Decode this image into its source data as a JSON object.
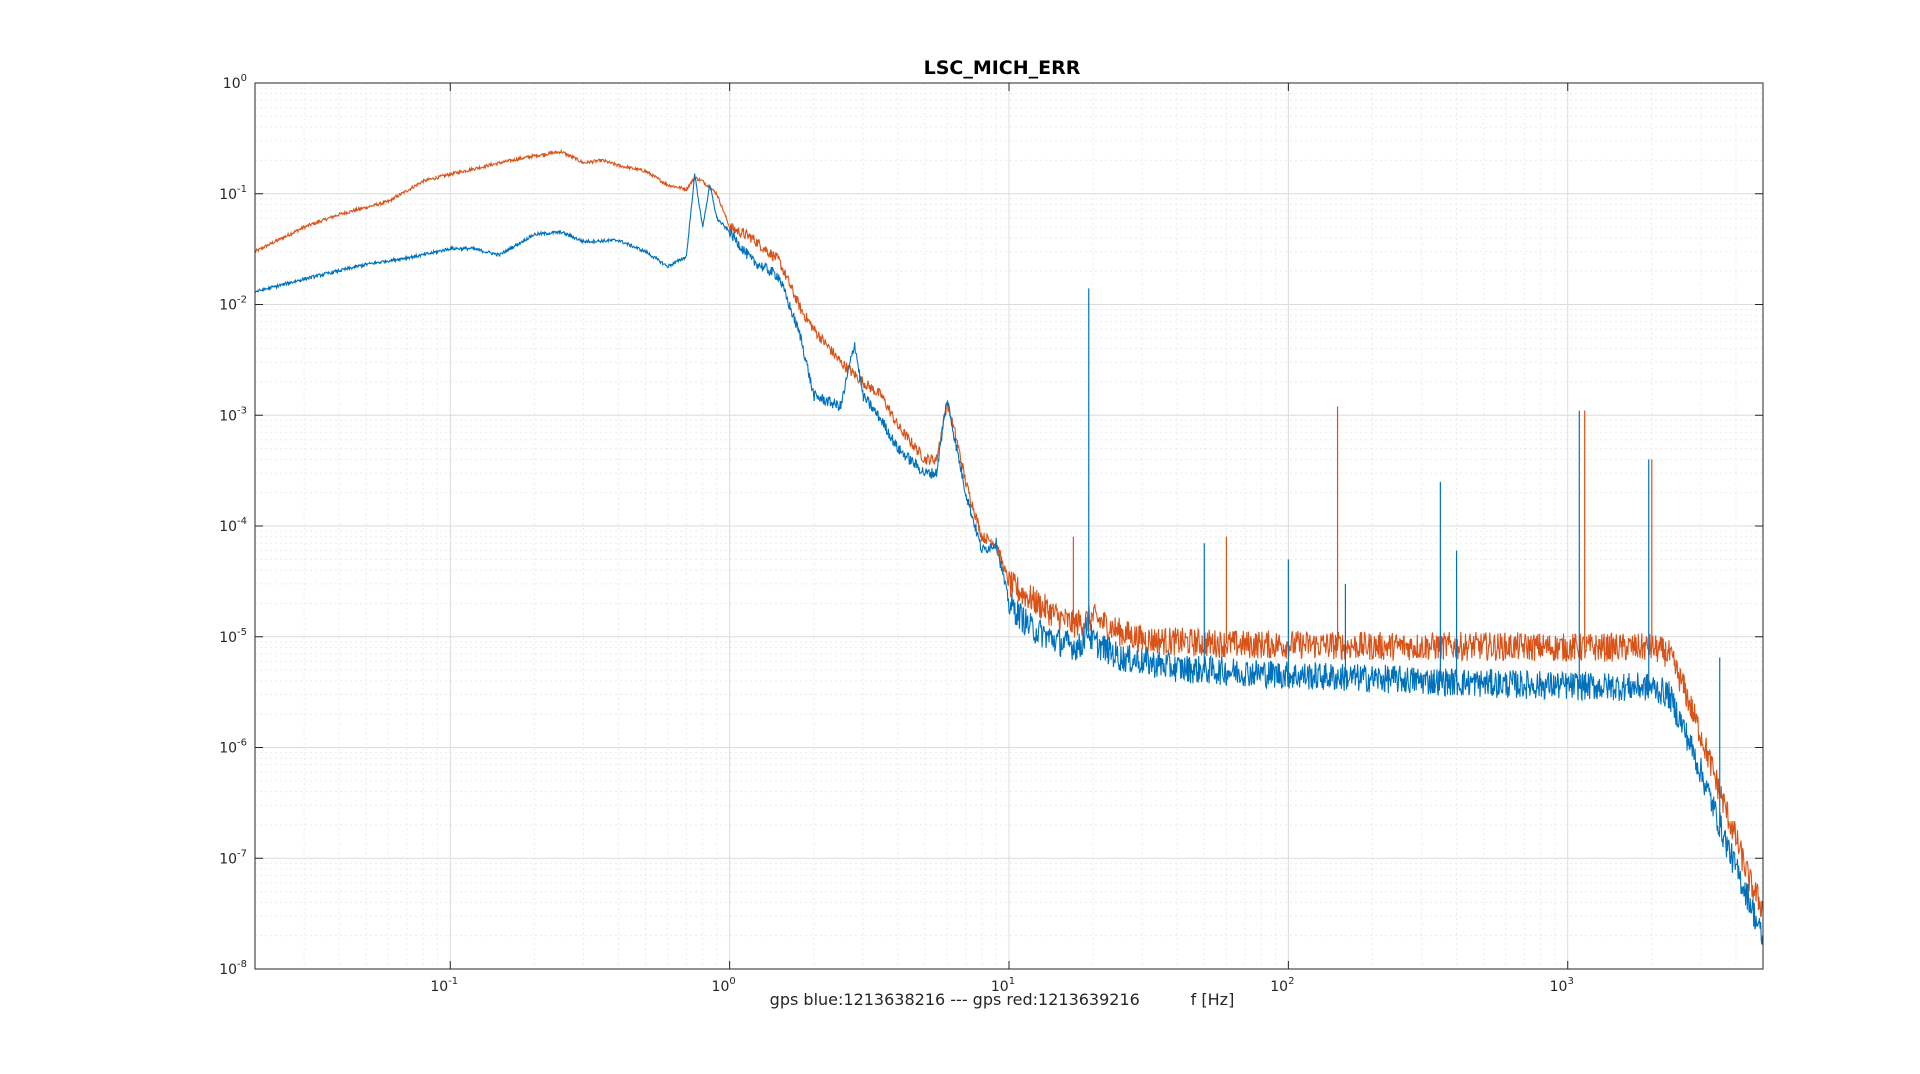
{
  "chart_data": {
    "type": "line",
    "title": "LSC_MICH_ERR",
    "xlabel": "gps blue:1213638216 --- gps red:1213639216          f [Hz]",
    "ylabel": "",
    "x_scale": "log",
    "y_scale": "log",
    "xlim": [
      0.02,
      5000
    ],
    "ylim": [
      1e-08,
      1
    ],
    "grid": true,
    "minor_grid": true,
    "legend": "none",
    "x_ticks": [
      {
        "value": 0.1,
        "base": "10",
        "exp": "-1"
      },
      {
        "value": 1,
        "base": "10",
        "exp": "0"
      },
      {
        "value": 10,
        "base": "10",
        "exp": "1"
      },
      {
        "value": 100,
        "base": "10",
        "exp": "2"
      },
      {
        "value": 1000,
        "base": "10",
        "exp": "3"
      }
    ],
    "y_ticks": [
      {
        "value": 1e-08,
        "base": "10",
        "exp": "-8"
      },
      {
        "value": 1e-07,
        "base": "10",
        "exp": "-7"
      },
      {
        "value": 1e-06,
        "base": "10",
        "exp": "-6"
      },
      {
        "value": 1e-05,
        "base": "10",
        "exp": "-5"
      },
      {
        "value": 0.0001,
        "base": "10",
        "exp": "-4"
      },
      {
        "value": 0.001,
        "base": "10",
        "exp": "-3"
      },
      {
        "value": 0.01,
        "base": "10",
        "exp": "-2"
      },
      {
        "value": 0.1,
        "base": "10",
        "exp": "-1"
      },
      {
        "value": 1,
        "base": "10",
        "exp": "0"
      }
    ],
    "series": [
      {
        "color": "#D95319",
        "points": [
          [
            0.02,
            0.03
          ],
          [
            0.03,
            0.05
          ],
          [
            0.04,
            0.065
          ],
          [
            0.06,
            0.085
          ],
          [
            0.08,
            0.13
          ],
          [
            0.1,
            0.15
          ],
          [
            0.15,
            0.19
          ],
          [
            0.2,
            0.22
          ],
          [
            0.25,
            0.24
          ],
          [
            0.3,
            0.19
          ],
          [
            0.35,
            0.2
          ],
          [
            0.4,
            0.18
          ],
          [
            0.5,
            0.16
          ],
          [
            0.6,
            0.12
          ],
          [
            0.7,
            0.11
          ],
          [
            0.75,
            0.14
          ],
          [
            0.8,
            0.13
          ],
          [
            0.9,
            0.1
          ],
          [
            1.0,
            0.05
          ],
          [
            1.2,
            0.04
          ],
          [
            1.5,
            0.025
          ],
          [
            1.8,
            0.009
          ],
          [
            2.0,
            0.006
          ],
          [
            2.5,
            0.003
          ],
          [
            3.0,
            0.002
          ],
          [
            3.5,
            0.0015
          ],
          [
            4.0,
            0.0008
          ],
          [
            5.0,
            0.0004
          ],
          [
            5.5,
            0.0004
          ],
          [
            6.0,
            0.0013
          ],
          [
            6.5,
            0.0006
          ],
          [
            7.0,
            0.00025
          ],
          [
            8.0,
            8e-05
          ],
          [
            9.0,
            7e-05
          ],
          [
            10,
            3e-05
          ],
          [
            12,
            2.2e-05
          ],
          [
            15,
            1.5e-05
          ],
          [
            17,
            1.3e-05
          ],
          [
            19,
            1.4e-05
          ],
          [
            20,
            1.5e-05
          ],
          [
            25,
            1.1e-05
          ],
          [
            30,
            9.5e-06
          ],
          [
            40,
            9e-06
          ],
          [
            50,
            8.8e-06
          ],
          [
            70,
            8.5e-06
          ],
          [
            100,
            8.5e-06
          ],
          [
            200,
            8.2e-06
          ],
          [
            500,
            8.2e-06
          ],
          [
            1000,
            8e-06
          ],
          [
            2000,
            8e-06
          ],
          [
            2300,
            7e-06
          ],
          [
            2600,
            3.5e-06
          ],
          [
            3000,
            1.3e-06
          ],
          [
            3500,
            4e-07
          ],
          [
            4000,
            1.5e-07
          ],
          [
            4500,
            6e-08
          ],
          [
            5000,
            3.5e-08
          ]
        ]
      },
      {
        "color": "#0072BD",
        "points": [
          [
            0.02,
            0.013
          ],
          [
            0.03,
            0.017
          ],
          [
            0.05,
            0.023
          ],
          [
            0.08,
            0.028
          ],
          [
            0.1,
            0.032
          ],
          [
            0.12,
            0.032
          ],
          [
            0.15,
            0.028
          ],
          [
            0.2,
            0.043
          ],
          [
            0.25,
            0.045
          ],
          [
            0.3,
            0.037
          ],
          [
            0.4,
            0.038
          ],
          [
            0.5,
            0.03
          ],
          [
            0.6,
            0.022
          ],
          [
            0.7,
            0.027
          ],
          [
            0.75,
            0.15
          ],
          [
            0.8,
            0.05
          ],
          [
            0.85,
            0.12
          ],
          [
            0.9,
            0.06
          ],
          [
            1.0,
            0.045
          ],
          [
            1.2,
            0.025
          ],
          [
            1.5,
            0.018
          ],
          [
            1.8,
            0.005
          ],
          [
            2.0,
            0.0015
          ],
          [
            2.5,
            0.0012
          ],
          [
            2.8,
            0.0045
          ],
          [
            3.0,
            0.0015
          ],
          [
            3.5,
            0.0009
          ],
          [
            4.0,
            0.0005
          ],
          [
            5.0,
            0.0003
          ],
          [
            5.5,
            0.0003
          ],
          [
            6.0,
            0.0014
          ],
          [
            6.5,
            0.0005
          ],
          [
            7.0,
            0.0002
          ],
          [
            8.0,
            6e-05
          ],
          [
            9.0,
            7e-05
          ],
          [
            10,
            2e-05
          ],
          [
            12,
            1.2e-05
          ],
          [
            15,
            9e-06
          ],
          [
            18,
            8e-06
          ],
          [
            19,
            1.2e-05
          ],
          [
            20,
            9e-06
          ],
          [
            25,
            6.5e-06
          ],
          [
            30,
            6e-06
          ],
          [
            40,
            5.2e-06
          ],
          [
            50,
            5e-06
          ],
          [
            70,
            4.8e-06
          ],
          [
            100,
            4.5e-06
          ],
          [
            200,
            4.2e-06
          ],
          [
            500,
            3.8e-06
          ],
          [
            1000,
            3.6e-06
          ],
          [
            2000,
            3.5e-06
          ],
          [
            2300,
            3e-06
          ],
          [
            2600,
            1.5e-06
          ],
          [
            3000,
            6e-07
          ],
          [
            3500,
            2e-07
          ],
          [
            4000,
            8e-08
          ],
          [
            4500,
            4e-08
          ],
          [
            5000,
            1.8e-08
          ]
        ]
      }
    ],
    "spikes": [
      {
        "f": 19.3,
        "h": 0.014,
        "color": "#0072BD"
      },
      {
        "f": 17,
        "h": 8e-05,
        "color": "#D95319"
      },
      {
        "f": 50,
        "h": 7e-05,
        "color": "#0072BD"
      },
      {
        "f": 60,
        "h": 8e-05,
        "color": "#D95319"
      },
      {
        "f": 100,
        "h": 5e-05,
        "color": "#0072BD"
      },
      {
        "f": 150,
        "h": 0.0012,
        "color": "#D95319"
      },
      {
        "f": 160,
        "h": 3e-05,
        "color": "#0072BD"
      },
      {
        "f": 350,
        "h": 0.00025,
        "color": "#0072BD"
      },
      {
        "f": 400,
        "h": 6e-05,
        "color": "#0072BD"
      },
      {
        "f": 1100,
        "h": 0.0011,
        "color": "#0072BD"
      },
      {
        "f": 1150,
        "h": 0.0011,
        "color": "#D95319"
      },
      {
        "f": 1950,
        "h": 0.0004,
        "color": "#0072BD"
      },
      {
        "f": 2000,
        "h": 0.0004,
        "color": "#D95319"
      },
      {
        "f": 3500,
        "h": 6.5e-06,
        "color": "#0072BD"
      }
    ]
  }
}
